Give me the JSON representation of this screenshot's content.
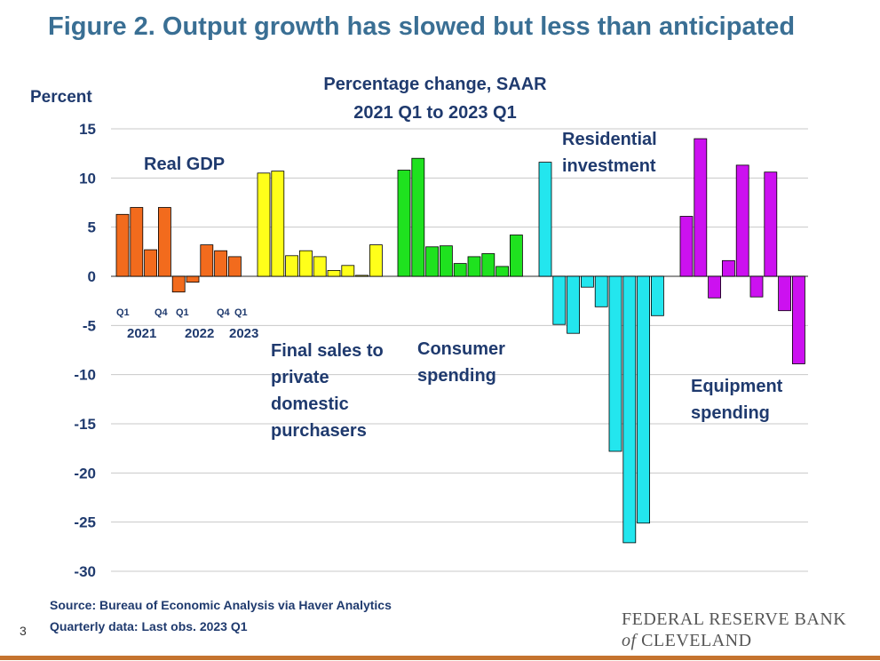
{
  "title": "Figure 2. Output growth has slowed but less than anticipated",
  "chart_data": {
    "type": "bar",
    "title": "Percentage change, SAAR",
    "subtitle": "2021 Q1 to 2023 Q1",
    "ylabel": "Percent",
    "xlabel": "",
    "ylim": [
      -30,
      15
    ],
    "yticks": [
      15,
      10,
      5,
      0,
      -5,
      -10,
      -15,
      -20,
      -25,
      -30
    ],
    "grid": true,
    "categories": [
      "2021 Q1",
      "2021 Q2",
      "2021 Q3",
      "2021 Q4",
      "2022 Q1",
      "2022 Q2",
      "2022 Q3",
      "2022 Q4",
      "2023 Q1"
    ],
    "series": [
      {
        "name": "Real GDP",
        "color": "#f26b1d",
        "values": [
          6.3,
          7.0,
          2.7,
          7.0,
          -1.6,
          -0.6,
          3.2,
          2.6,
          2.0
        ]
      },
      {
        "name": "Final sales to private domestic purchasers",
        "color": "#ffff1a",
        "values": [
          10.5,
          10.7,
          2.1,
          2.6,
          2.0,
          0.6,
          1.1,
          0.1,
          3.2
        ]
      },
      {
        "name": "Consumer spending",
        "color": "#1fe21f",
        "values": [
          10.8,
          12.0,
          3.0,
          3.1,
          1.3,
          2.0,
          2.3,
          1.0,
          4.2
        ]
      },
      {
        "name": "Residential investment",
        "color": "#23e6ee",
        "values": [
          11.6,
          -4.9,
          -5.8,
          -1.1,
          -3.1,
          -17.8,
          -27.1,
          -25.1,
          -4.0
        ]
      },
      {
        "name": "Equipment spending",
        "color": "#cc11f0",
        "values": [
          6.1,
          14.0,
          -2.2,
          1.6,
          11.3,
          -2.1,
          10.6,
          -3.5,
          -8.9
        ]
      }
    ],
    "group_labels": [
      {
        "line1": "Real GDP",
        "line2": "",
        "line3": "",
        "line4": ""
      },
      {
        "line1": "Final sales to",
        "line2": "private",
        "line3": "domestic",
        "line4": "purchasers"
      },
      {
        "line1": "Consumer",
        "line2": "spending",
        "line3": "",
        "line4": ""
      },
      {
        "line1": "Residential",
        "line2": "investment",
        "line3": "",
        "line4": ""
      },
      {
        "line1": "Equipment",
        "line2": "spending",
        "line3": "",
        "line4": ""
      }
    ],
    "quarter_markers": [
      "Q1",
      "Q4",
      "Q1",
      "Q4",
      "Q1"
    ],
    "year_markers": [
      "2021",
      "2022",
      "2023"
    ]
  },
  "footer": {
    "source": "Source: Bureau of Economic Analysis via Haver Analytics",
    "note": "Quarterly data: Last obs. 2023 Q1",
    "slide_number": "3",
    "org_line1": "FEDERAL RESERVE BANK",
    "org_of": "of",
    "org_city": "CLEVELAND"
  }
}
